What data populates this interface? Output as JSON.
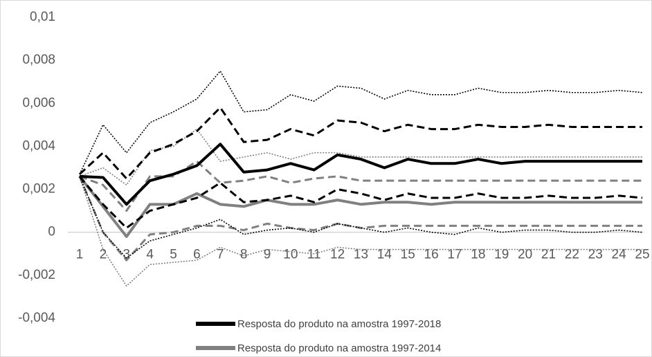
{
  "chart_data": {
    "type": "line",
    "categories": [
      1,
      2,
      3,
      4,
      5,
      6,
      7,
      8,
      9,
      10,
      11,
      12,
      13,
      14,
      15,
      16,
      17,
      18,
      19,
      20,
      21,
      22,
      23,
      24,
      25
    ],
    "ylim": [
      -0.004,
      0.01
    ],
    "yticks": [
      {
        "value": -0.004,
        "label": "-0,004"
      },
      {
        "value": -0.002,
        "label": "-0,002"
      },
      0,
      {
        "value": 0.002,
        "label": "0,002"
      },
      {
        "value": 0.004,
        "label": "0,004"
      },
      {
        "value": 0.006,
        "label": "0,006"
      },
      {
        "value": 0.008,
        "label": "0,008"
      },
      {
        "value": 0.01,
        "label": "0,01"
      }
    ],
    "grid": false,
    "legend": "bottom",
    "series": [
      {
        "name": "Resposta do produto na amostra 1997-2018",
        "color": "#000000",
        "style": "solid",
        "values": [
          0.0026,
          0.00255,
          0.0013,
          0.0024,
          0.0027,
          0.0031,
          0.0041,
          0.0028,
          0.0029,
          0.0032,
          0.0029,
          0.0036,
          0.0034,
          0.003,
          0.0034,
          0.0032,
          0.0032,
          0.0034,
          0.0032,
          0.0033,
          0.0033,
          0.0033,
          0.0033,
          0.0033,
          0.0033
        ]
      },
      {
        "color": "#000000",
        "style": "dashed",
        "values": [
          0.0027,
          0.0037,
          0.0025,
          0.0037,
          0.0041,
          0.0047,
          0.0058,
          0.0042,
          0.0043,
          0.0048,
          0.0045,
          0.0052,
          0.0051,
          0.0047,
          0.005,
          0.0048,
          0.0048,
          0.005,
          0.0049,
          0.0049,
          0.005,
          0.0049,
          0.0049,
          0.0049,
          0.0049
        ]
      },
      {
        "color": "#000000",
        "style": "dashed",
        "values": [
          0.0026,
          0.0013,
          0.0002,
          0.001,
          0.0013,
          0.0016,
          0.0023,
          0.0014,
          0.0015,
          0.0017,
          0.0014,
          0.002,
          0.0018,
          0.0015,
          0.0018,
          0.0016,
          0.0016,
          0.0018,
          0.0016,
          0.0016,
          0.0017,
          0.0016,
          0.0016,
          0.0017,
          0.0016
        ]
      },
      {
        "color": "#000000",
        "style": "dotted",
        "values": [
          0.0027,
          0.005,
          0.0037,
          0.0051,
          0.0056,
          0.0062,
          0.0075,
          0.0056,
          0.0057,
          0.0064,
          0.0061,
          0.0068,
          0.0067,
          0.0062,
          0.0066,
          0.0064,
          0.0064,
          0.0067,
          0.0065,
          0.0065,
          0.0066,
          0.0065,
          0.0065,
          0.0066,
          0.0065
        ]
      },
      {
        "color": "#000000",
        "style": "dotted",
        "values": [
          0.0026,
          0.0,
          -0.0012,
          -0.0004,
          -0.0001,
          0.0002,
          0.0006,
          -0.0001,
          0.0001,
          0.0002,
          0.0,
          0.0004,
          0.0002,
          0.0,
          0.0002,
          0.0,
          -0.0001,
          0.0002,
          0.0,
          0.0001,
          0.0001,
          0.0,
          0.0,
          0.0001,
          0.0
        ]
      },
      {
        "name": "Resposta do produto na amostra 1997-2014",
        "color": "#808080",
        "style": "solid",
        "values": [
          0.0026,
          0.0012,
          -0.0002,
          0.0013,
          0.0013,
          0.0018,
          0.0013,
          0.0012,
          0.0015,
          0.0013,
          0.0013,
          0.0015,
          0.0013,
          0.0014,
          0.0014,
          0.0013,
          0.0014,
          0.0014,
          0.0014,
          0.0014,
          0.0014,
          0.0014,
          0.0014,
          0.0014,
          0.0014
        ]
      },
      {
        "color": "#808080",
        "style": "dashed",
        "values": [
          0.0026,
          0.0022,
          0.001,
          0.0026,
          0.0026,
          0.0033,
          0.0023,
          0.0024,
          0.0026,
          0.0023,
          0.0025,
          0.0026,
          0.0024,
          0.0024,
          0.0024,
          0.0024,
          0.0024,
          0.0024,
          0.0024,
          0.0024,
          0.0024,
          0.0024,
          0.0024,
          0.0024,
          0.0024
        ]
      },
      {
        "color": "#808080",
        "style": "dashed",
        "values": [
          0.0026,
          0.0,
          -0.0013,
          -0.0001,
          0.0,
          0.0003,
          0.0003,
          0.0001,
          0.0004,
          0.0002,
          0.0001,
          0.0004,
          0.0002,
          0.0003,
          0.0003,
          0.0003,
          0.0003,
          0.0003,
          0.0003,
          0.0003,
          0.0003,
          0.0003,
          0.0003,
          0.0003,
          0.0003
        ]
      },
      {
        "color": "#808080",
        "style": "dotted",
        "values": [
          0.0026,
          0.003,
          0.0022,
          0.0038,
          0.004,
          0.0048,
          0.0033,
          0.0035,
          0.0037,
          0.0034,
          0.0037,
          0.0037,
          0.0035,
          0.0035,
          0.0035,
          0.0035,
          0.0035,
          0.0035,
          0.0035,
          0.0035,
          0.0035,
          0.0035,
          0.0035,
          0.0035,
          0.0035
        ]
      },
      {
        "color": "#808080",
        "style": "dotted",
        "values": [
          0.0026,
          -0.0008,
          -0.0025,
          -0.0015,
          -0.0014,
          -0.0013,
          -0.0007,
          -0.0011,
          -0.0008,
          -0.0009,
          -0.001,
          -0.0007,
          -0.0008,
          -0.0008,
          -0.0008,
          -0.0008,
          -0.0008,
          -0.0008,
          -0.0008,
          -0.0008,
          -0.0008,
          -0.0008,
          -0.0008,
          -0.0008,
          -0.0008
        ]
      }
    ]
  }
}
